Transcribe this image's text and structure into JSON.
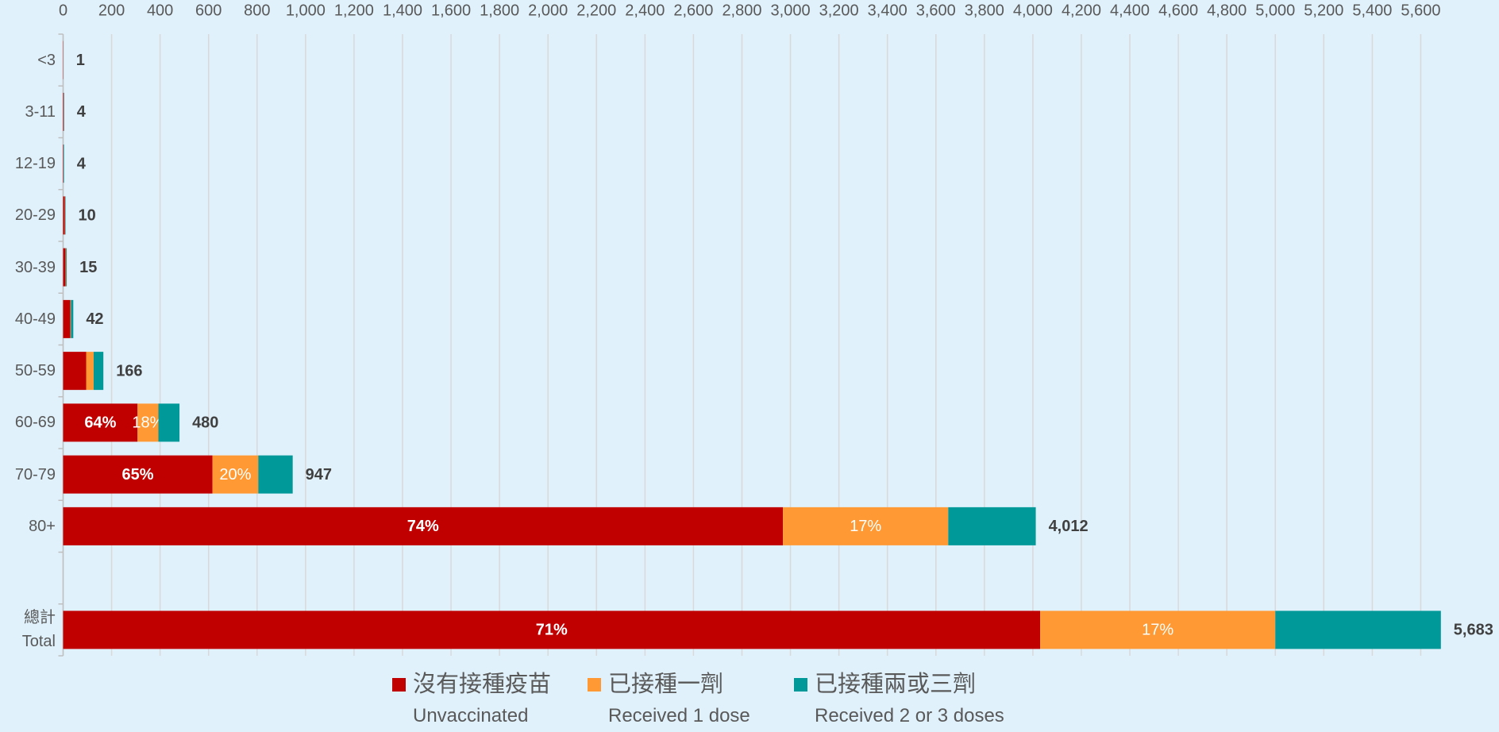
{
  "chart_data": {
    "type": "stacked-bar-horizontal",
    "categories": [
      "<3",
      "3-11",
      "12-19",
      "20-29",
      "30-39",
      "40-49",
      "50-59",
      "60-69",
      "70-79",
      "80+",
      null,
      "總計\nTotal"
    ],
    "series": [
      {
        "name": "沒有接種疫苗\nUnvaccinated",
        "color": "#c00000",
        "values": [
          1,
          3,
          2,
          7,
          10,
          30,
          95,
          307,
          616,
          2969,
          null,
          4030
        ],
        "value_labels": [
          null,
          null,
          null,
          null,
          null,
          null,
          null,
          "64%",
          "65%",
          "74%",
          null,
          "71%"
        ]
      },
      {
        "name": "已接種一劑\nReceived 1 dose",
        "color": "#ff9933",
        "values": [
          0,
          0,
          0,
          1,
          2,
          2,
          31,
          86,
          189,
          682,
          null,
          970
        ],
        "value_labels": [
          null,
          null,
          null,
          null,
          null,
          null,
          null,
          "18%",
          "20%",
          "17%",
          null,
          "17%"
        ]
      },
      {
        "name": "已接種兩或三劑\nReceived 2 or 3 doses",
        "color": "#009999",
        "values": [
          0,
          1,
          2,
          2,
          3,
          10,
          40,
          87,
          142,
          361,
          null,
          683
        ]
      }
    ],
    "totals": [
      1,
      4,
      4,
      10,
      15,
      42,
      166,
      480,
      947,
      4012,
      null,
      5683
    ],
    "total_labels": [
      "1",
      "4",
      "4",
      "10",
      "15",
      "42",
      "166",
      "480",
      "947",
      "4,012",
      null,
      "5,683"
    ],
    "xlim": [
      0,
      5700
    ],
    "xticks": [
      0,
      200,
      400,
      600,
      800,
      {
        "value": 1000,
        "label": "1,000"
      },
      {
        "value": 1200,
        "label": "1,200"
      },
      {
        "value": 1400,
        "label": "1,400"
      },
      {
        "value": 1600,
        "label": "1,600"
      },
      {
        "value": 1800,
        "label": "1,800"
      },
      {
        "value": 2000,
        "label": "2,000"
      },
      {
        "value": 2200,
        "label": "2,200"
      },
      {
        "value": 2400,
        "label": "2,400"
      },
      {
        "value": 2600,
        "label": "2,600"
      },
      {
        "value": 2800,
        "label": "2,800"
      },
      {
        "value": 3000,
        "label": "3,000"
      },
      {
        "value": 3200,
        "label": "3,200"
      },
      {
        "value": 3400,
        "label": "3,400"
      },
      {
        "value": 3600,
        "label": "3,600"
      },
      {
        "value": 3800,
        "label": "3,800"
      },
      {
        "value": 4000,
        "label": "4,000"
      },
      {
        "value": 4200,
        "label": "4,200"
      },
      {
        "value": 4400,
        "label": "4,400"
      },
      {
        "value": 4600,
        "label": "4,600"
      },
      {
        "value": 4800,
        "label": "4,800"
      },
      {
        "value": 5000,
        "label": "5,000"
      },
      {
        "value": 5200,
        "label": "5,200"
      },
      {
        "value": 5400,
        "label": "5,400"
      },
      {
        "value": 5600,
        "label": "5,600"
      }
    ],
    "grid": true
  }
}
